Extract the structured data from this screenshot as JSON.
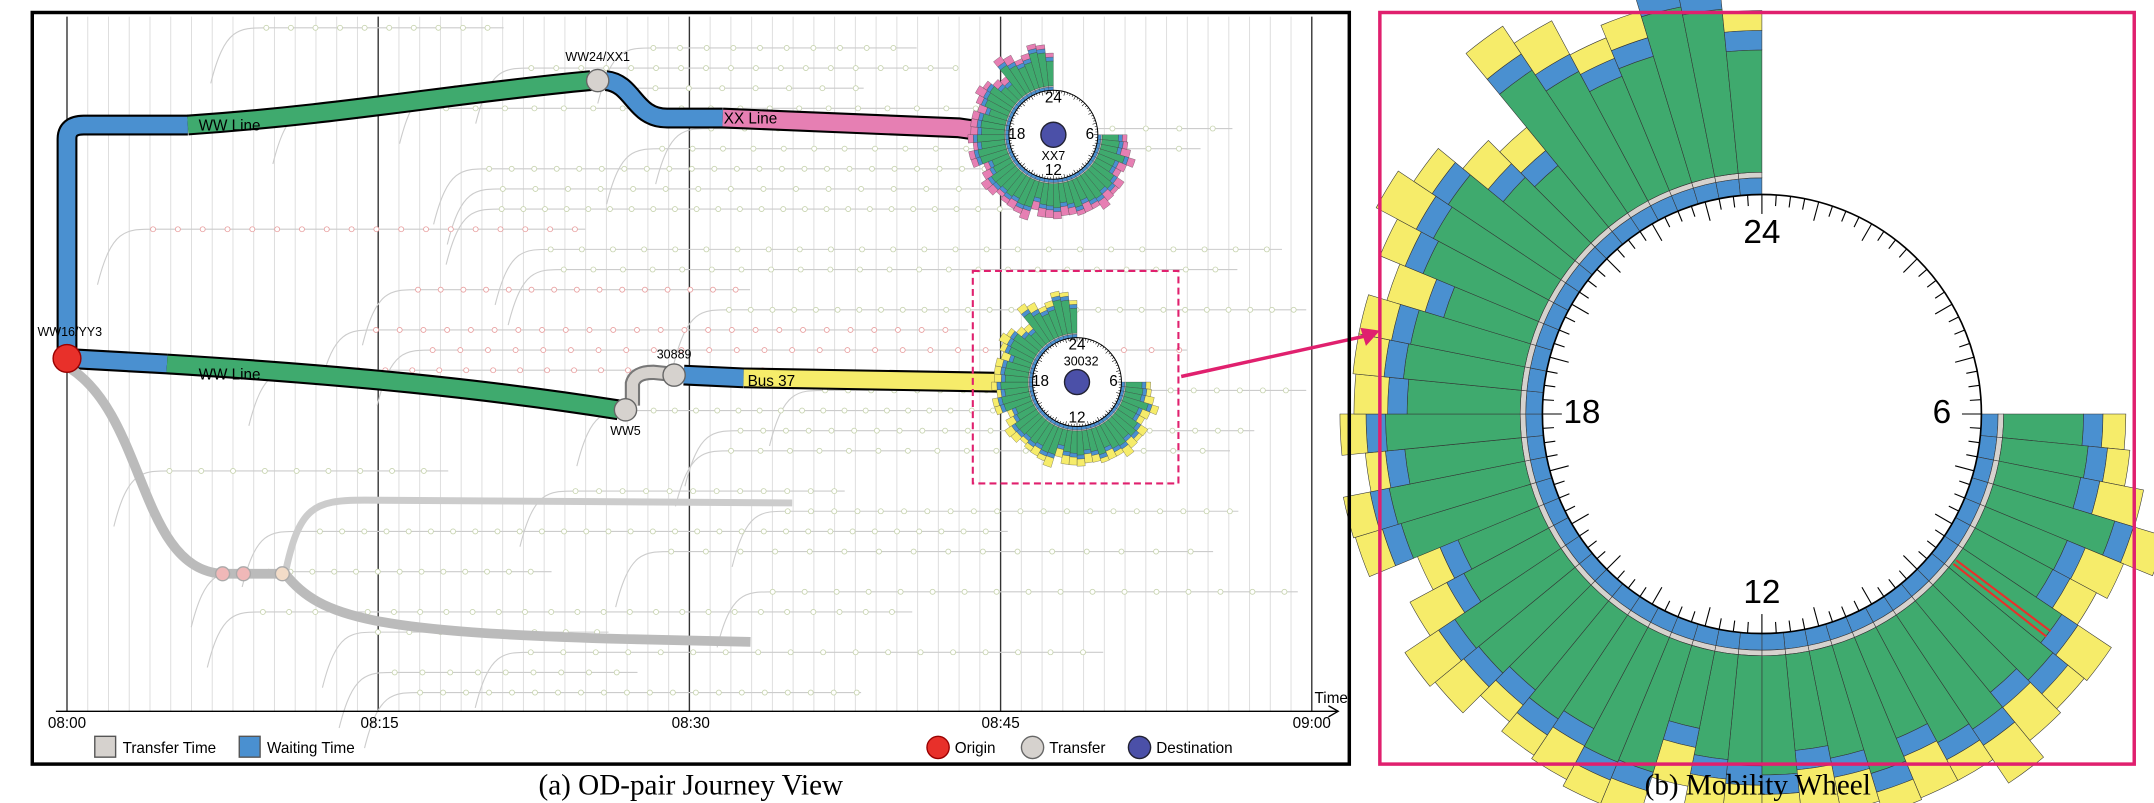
{
  "panel_a": {
    "caption": "(a) OD-pair Journey View",
    "time_axis_label": "Time",
    "time_ticks": [
      "08:00",
      "08:15",
      "08:30",
      "08:45",
      "09:00"
    ],
    "routes": [
      "WW Line",
      "XX Line",
      "WW Line",
      "Bus 37"
    ],
    "stops": [
      "WW16/YY3",
      "WW24/XX1",
      "XX7",
      "WW5",
      "30889",
      "30032"
    ],
    "legend": [
      "Transfer Time",
      "Waiting Time",
      "Origin",
      "Transfer",
      "Destination"
    ]
  },
  "panel_b": {
    "caption": "(b) Mobility Wheel",
    "clock_labels": [
      "24",
      "6",
      "12",
      "18"
    ]
  }
}
